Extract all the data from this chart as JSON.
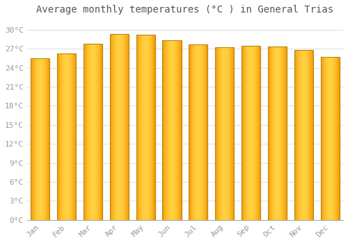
{
  "title": "Average monthly temperatures (°C ) in General Trias",
  "months": [
    "Jan",
    "Feb",
    "Mar",
    "Apr",
    "May",
    "Jun",
    "Jul",
    "Aug",
    "Sep",
    "Oct",
    "Nov",
    "Dec"
  ],
  "values": [
    25.5,
    26.2,
    27.8,
    29.3,
    29.2,
    28.3,
    27.7,
    27.2,
    27.5,
    27.3,
    26.8,
    25.7
  ],
  "bar_color_center": "#FFD040",
  "bar_color_edge": "#F59500",
  "bar_outline_color": "#B8860B",
  "background_color": "#FFFFFF",
  "grid_color": "#DDDDDD",
  "yticks": [
    0,
    3,
    6,
    9,
    12,
    15,
    18,
    21,
    24,
    27,
    30
  ],
  "ylim": [
    0,
    31.5
  ],
  "title_fontsize": 10,
  "tick_fontsize": 8,
  "font_family": "monospace",
  "tick_color": "#999999",
  "bar_width": 0.72
}
